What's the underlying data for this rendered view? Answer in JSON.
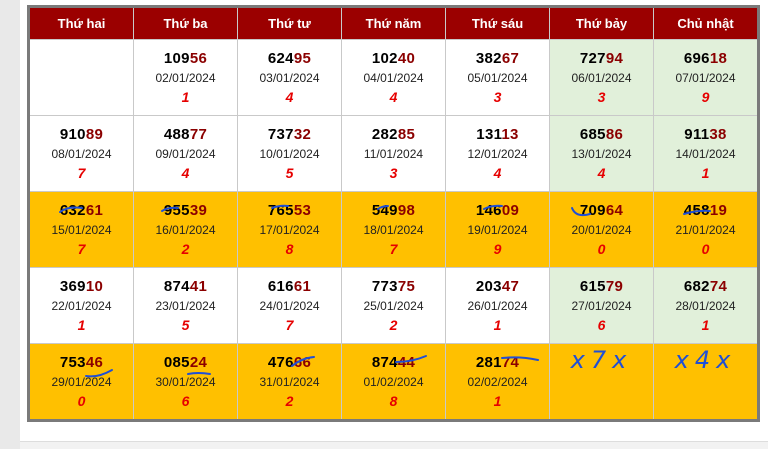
{
  "weekdays": [
    "Thứ hai",
    "Thứ ba",
    "Thứ tư",
    "Thứ năm",
    "Thứ sáu",
    "Thứ bảy",
    "Chủ nhật"
  ],
  "weeks": [
    {
      "highlight": false,
      "cells": [
        null,
        {
          "head": "109",
          "tail": "56",
          "date": "02/01/2024",
          "sum": "1"
        },
        {
          "head": "624",
          "tail": "95",
          "date": "03/01/2024",
          "sum": "4"
        },
        {
          "head": "102",
          "tail": "40",
          "date": "04/01/2024",
          "sum": "4"
        },
        {
          "head": "382",
          "tail": "67",
          "date": "05/01/2024",
          "sum": "3"
        },
        {
          "head": "727",
          "tail": "94",
          "date": "06/01/2024",
          "sum": "3"
        },
        {
          "head": "696",
          "tail": "18",
          "date": "07/01/2024",
          "sum": "9"
        }
      ]
    },
    {
      "highlight": false,
      "cells": [
        {
          "head": "910",
          "tail": "89",
          "date": "08/01/2024",
          "sum": "7"
        },
        {
          "head": "488",
          "tail": "77",
          "date": "09/01/2024",
          "sum": "4"
        },
        {
          "head": "737",
          "tail": "32",
          "date": "10/01/2024",
          "sum": "5"
        },
        {
          "head": "282",
          "tail": "85",
          "date": "11/01/2024",
          "sum": "3"
        },
        {
          "head": "131",
          "tail": "13",
          "date": "12/01/2024",
          "sum": "4"
        },
        {
          "head": "685",
          "tail": "86",
          "date": "13/01/2024",
          "sum": "4"
        },
        {
          "head": "911",
          "tail": "38",
          "date": "14/01/2024",
          "sum": "1"
        }
      ]
    },
    {
      "highlight": true,
      "cells": [
        {
          "head": "632",
          "tail": "61",
          "date": "15/01/2024",
          "sum": "7"
        },
        {
          "head": "955",
          "tail": "39",
          "date": "16/01/2024",
          "sum": "2"
        },
        {
          "head": "765",
          "tail": "53",
          "date": "17/01/2024",
          "sum": "8"
        },
        {
          "head": "549",
          "tail": "98",
          "date": "18/01/2024",
          "sum": "7"
        },
        {
          "head": "146",
          "tail": "09",
          "date": "19/01/2024",
          "sum": "9"
        },
        {
          "head": "709",
          "tail": "64",
          "date": "20/01/2024",
          "sum": "0"
        },
        {
          "head": "458",
          "tail": "19",
          "date": "21/01/2024",
          "sum": "0"
        }
      ]
    },
    {
      "highlight": false,
      "cells": [
        {
          "head": "369",
          "tail": "10",
          "date": "22/01/2024",
          "sum": "1"
        },
        {
          "head": "874",
          "tail": "41",
          "date": "23/01/2024",
          "sum": "5"
        },
        {
          "head": "616",
          "tail": "61",
          "date": "24/01/2024",
          "sum": "7"
        },
        {
          "head": "773",
          "tail": "75",
          "date": "25/01/2024",
          "sum": "2"
        },
        {
          "head": "203",
          "tail": "47",
          "date": "26/01/2024",
          "sum": "1"
        },
        {
          "head": "615",
          "tail": "79",
          "date": "27/01/2024",
          "sum": "6"
        },
        {
          "head": "682",
          "tail": "74",
          "date": "28/01/2024",
          "sum": "1"
        }
      ]
    },
    {
      "highlight": true,
      "cells": [
        {
          "head": "753",
          "tail": "46",
          "date": "29/01/2024",
          "sum": "0"
        },
        {
          "head": "085",
          "tail": "24",
          "date": "30/01/2024",
          "sum": "6"
        },
        {
          "head": "476",
          "tail": "66",
          "date": "31/01/2024",
          "sum": "2"
        },
        {
          "head": "874",
          "tail": "44",
          "date": "01/02/2024",
          "sum": "8"
        },
        {
          "head": "281",
          "tail": "74",
          "date": "02/02/2024",
          "sum": "1"
        },
        {
          "handwritten": "x7x"
        },
        {
          "handwritten": "x4x"
        }
      ]
    }
  ],
  "colors": {
    "header_bg": "#9b0000",
    "weekend_bg": "#e1f0da",
    "highlight_bg": "#ffc000",
    "sum_color": "#e60000",
    "tail_color": "#8b0000",
    "ink_color": "#1f4fd6"
  }
}
